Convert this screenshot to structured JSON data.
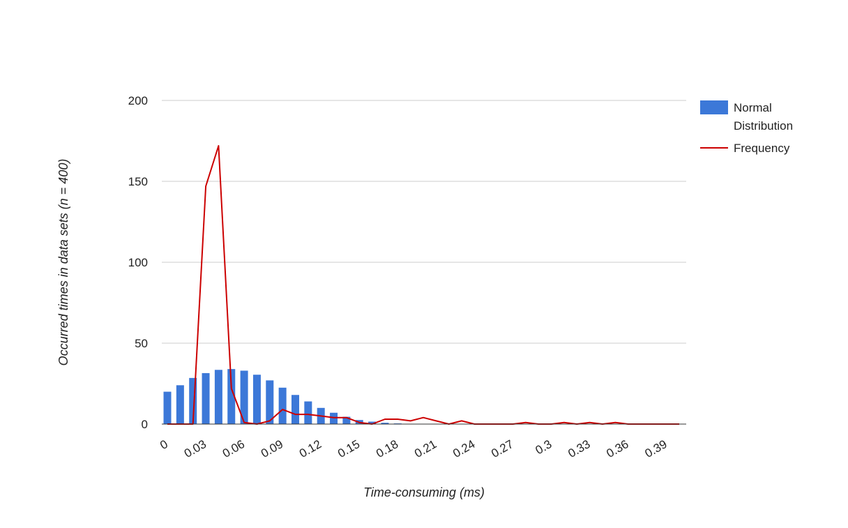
{
  "chart_data": {
    "type": "bar",
    "title": "",
    "xlabel": "Time-consuming (ms)",
    "ylabel": "Occurred times in data sets (n = 400)",
    "ylim": [
      0,
      200
    ],
    "yticks": [
      0,
      50,
      100,
      150,
      200
    ],
    "grid": true,
    "legend_position": "right",
    "x": [
      0,
      0.01,
      0.02,
      0.03,
      0.04,
      0.05,
      0.06,
      0.07,
      0.08,
      0.09,
      0.1,
      0.11,
      0.12,
      0.13,
      0.14,
      0.15,
      0.16,
      0.17,
      0.18,
      0.19,
      0.2,
      0.21,
      0.22,
      0.23,
      0.24,
      0.25,
      0.26,
      0.27,
      0.28,
      0.29,
      0.3,
      0.31,
      0.32,
      0.33,
      0.34,
      0.35,
      0.36,
      0.37,
      0.38,
      0.39,
      0.4
    ],
    "x_tick_labels": [
      "0",
      "0.03",
      "0.06",
      "0.09",
      "0.12",
      "0.15",
      "0.18",
      "0.21",
      "0.24",
      "0.27",
      "0.3",
      "0.33",
      "0.36",
      "0.39"
    ],
    "x_tick_values": [
      0,
      0.03,
      0.06,
      0.09,
      0.12,
      0.15,
      0.18,
      0.21,
      0.24,
      0.27,
      0.3,
      0.33,
      0.36,
      0.39
    ],
    "series": [
      {
        "name": "Normal Distribution",
        "type": "bar",
        "color": "#3c78d8",
        "values": [
          20,
          24,
          28.5,
          31.5,
          33.5,
          34,
          33,
          30.5,
          27,
          22.5,
          18,
          14,
          10,
          7,
          4.5,
          2.5,
          1.5,
          0.8,
          0.4,
          0.2,
          0.1,
          0,
          0,
          0,
          0,
          0,
          0,
          0,
          0,
          0,
          0,
          0,
          0,
          0,
          0,
          0,
          0,
          0,
          0,
          0,
          0
        ]
      },
      {
        "name": "Frequency",
        "type": "line",
        "color": "#cc0000",
        "values": [
          0,
          0,
          0,
          147,
          172,
          22,
          1,
          0,
          2,
          9,
          6,
          6,
          5,
          4,
          4,
          1,
          0,
          3,
          3,
          2,
          4,
          2,
          0,
          2,
          0,
          0,
          0,
          0,
          1,
          0,
          0,
          1,
          0,
          1,
          0,
          1,
          0,
          0,
          0,
          0,
          0
        ]
      }
    ]
  }
}
